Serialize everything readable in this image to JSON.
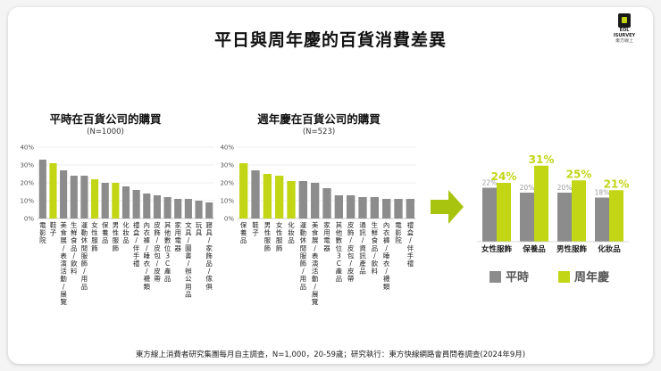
{
  "page": {
    "title": "平日與周年慶的百貨消費差異",
    "footer": "東方線上消費者研究集團每月自主調查，N=1,000，20-59歲；研究執行：東方快線網路會員問卷調查(2024年9月)",
    "logo": {
      "line1": "EOL",
      "line2": "ISURVEY",
      "line3": "東方線上"
    }
  },
  "colors": {
    "gray": "#8c8c8c",
    "accent": "#c2d615",
    "arrow": "#a9c40f"
  },
  "chart_data": [
    {
      "type": "bar",
      "title": "平時在百貨公司的購買",
      "subtitle": "(N=1000)",
      "ylim": [
        0,
        40
      ],
      "yticks": [
        "0%",
        "10%",
        "20%",
        "30%",
        "40%"
      ],
      "categories": [
        "電影院",
        "鞋子",
        "美食展/表演活動/展覽",
        "生鮮食品/飲料",
        "運動休閒服飾/用品",
        "女性服飾",
        "保養品",
        "男性服飾",
        "化妝品",
        "禮盒/伴手禮",
        "內衣褲/睡衣/襪類",
        "皮飾/皮包/皮帶",
        "其他數位3C產品",
        "家用電器",
        "文具/圖書/辦公用品",
        "玩具",
        "寢具/家飾品/傢俱"
      ],
      "values": [
        33,
        31,
        27,
        24,
        24,
        22,
        20,
        20,
        18,
        16,
        14,
        13,
        12,
        11,
        11,
        10,
        9
      ],
      "highlight": [
        false,
        true,
        false,
        false,
        false,
        true,
        false,
        true,
        false,
        false,
        false,
        false,
        false,
        false,
        false,
        false,
        false
      ]
    },
    {
      "type": "bar",
      "title": "週年慶在百貨公司的購買",
      "subtitle": "(N=523)",
      "ylim": [
        0,
        40
      ],
      "yticks": [
        "0%",
        "10%",
        "20%",
        "30%",
        "40%"
      ],
      "categories": [
        "保養品",
        "鞋子",
        "男性服飾",
        "女性服飾",
        "化妝品",
        "運動休閒服飾/用品",
        "美食展/表演活動/展覽",
        "家用電器",
        "其他數位3C產品",
        "皮飾/皮包/皮帶",
        "通訊/資訊產品",
        "生鮮食品/飲料",
        "內衣褲/睡衣/襪類",
        "電影院",
        "禮盒/伴手禮"
      ],
      "values": [
        31,
        27,
        25,
        24,
        21,
        21,
        20,
        17,
        13,
        13,
        12,
        12,
        11,
        11,
        11
      ],
      "highlight": [
        true,
        false,
        true,
        true,
        true,
        false,
        false,
        false,
        false,
        false,
        false,
        false,
        false,
        false,
        false
      ]
    },
    {
      "type": "bar",
      "categories": [
        "女性服飾",
        "保養品",
        "男性服飾",
        "化妝品"
      ],
      "series": [
        {
          "name": "平時",
          "values": [
            22,
            20,
            20,
            18
          ],
          "labels": [
            "22%",
            "20%",
            "20%",
            "18%"
          ]
        },
        {
          "name": "周年慶",
          "values": [
            24,
            31,
            25,
            21
          ],
          "labels": [
            "24%",
            "31%",
            "25%",
            "21%"
          ]
        }
      ],
      "legend_position": "bottom"
    }
  ]
}
